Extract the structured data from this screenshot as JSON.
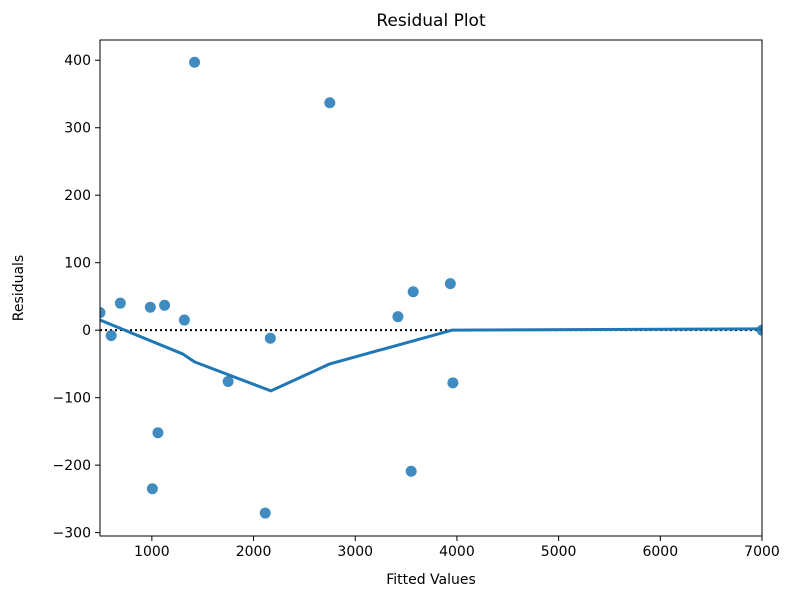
{
  "chart_data": {
    "type": "scatter",
    "title": "Residual Plot",
    "xlabel": "Fitted Values",
    "ylabel": "Residuals",
    "xlim": [
      490,
      7000
    ],
    "ylim": [
      -305,
      430
    ],
    "xticks": [
      1000,
      2000,
      3000,
      4000,
      5000,
      6000,
      7000
    ],
    "yticks": [
      -300,
      -200,
      -100,
      0,
      100,
      200,
      300,
      400
    ],
    "xtick_labels": [
      "1000",
      "2000",
      "3000",
      "4000",
      "5000",
      "6000",
      "7000"
    ],
    "ytick_labels": [
      "−300",
      "−200",
      "−100",
      "0",
      "100",
      "200",
      "300",
      "400"
    ],
    "grid": false,
    "reference_line": {
      "y": 0,
      "style": "dotted",
      "color": "#000000"
    },
    "points": {
      "color": "#1f77b4",
      "x": [
        490,
        600,
        690,
        985,
        1005,
        1060,
        1125,
        1320,
        1420,
        1750,
        2115,
        2165,
        2750,
        3420,
        3550,
        3570,
        3935,
        3960,
        7000
      ],
      "y": [
        26,
        -8,
        40,
        34,
        -235,
        -152,
        37,
        15,
        397,
        -76,
        -271,
        -12,
        337,
        20,
        -209,
        57,
        69,
        -78,
        0
      ]
    },
    "smooth_line": {
      "color": "#1f77b4",
      "x": [
        490,
        1300,
        1420,
        2170,
        2750,
        3950,
        7000
      ],
      "y": [
        15,
        -35,
        -47,
        -90,
        -50,
        0,
        2
      ]
    }
  }
}
